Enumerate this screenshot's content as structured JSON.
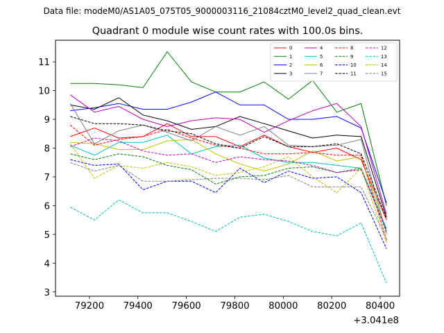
{
  "chart_data": {
    "type": "line",
    "suptitle": "Data file: modeM0/AS1A05_075T05_9000003116_21084cztM0_level2_quad_clean.evt",
    "title": "Quadrant 0 module wise count rates with 100.0s bins.",
    "xlabel": "",
    "ylabel": "",
    "x_offset_label": "+3.041e8",
    "xlim": [
      79060,
      80480
    ],
    "ylim": [
      2.85,
      11.75
    ],
    "x_ticks": [
      79200,
      79400,
      79600,
      79800,
      80000,
      80200,
      80400
    ],
    "x_tick_labels": [
      "79200",
      "79400",
      "79600",
      "79800",
      "80000",
      "80200",
      "80400"
    ],
    "y_ticks": [
      3,
      4,
      5,
      6,
      7,
      8,
      9,
      10,
      11
    ],
    "y_tick_labels": [
      "3",
      "4",
      "5",
      "6",
      "7",
      "8",
      "9",
      "10",
      "11"
    ],
    "legend_position": "top-right",
    "x": [
      79121,
      79221,
      79321,
      79421,
      79521,
      79621,
      79721,
      79821,
      79921,
      80021,
      80121,
      80221,
      80321,
      80426
    ],
    "series": [
      {
        "name": "0",
        "color": "#ff0000",
        "style": "solid",
        "values": [
          8.4,
          8.7,
          8.35,
          8.4,
          8.85,
          8.4,
          8.4,
          8.05,
          8.45,
          8.05,
          7.85,
          8.0,
          7.6,
          5.5
        ]
      },
      {
        "name": "1",
        "color": "#008000",
        "style": "solid",
        "values": [
          10.25,
          10.25,
          10.2,
          10.1,
          11.35,
          10.3,
          9.95,
          9.95,
          10.3,
          9.7,
          10.35,
          9.25,
          9.55,
          6.0
        ]
      },
      {
        "name": "2",
        "color": "#0000ff",
        "style": "solid",
        "values": [
          9.3,
          9.4,
          9.55,
          9.35,
          9.35,
          9.6,
          9.95,
          9.5,
          9.5,
          9.0,
          9.0,
          9.1,
          8.7,
          6.1
        ]
      },
      {
        "name": "3",
        "color": "#000000",
        "style": "solid",
        "values": [
          9.5,
          9.35,
          9.75,
          9.15,
          8.95,
          8.65,
          8.75,
          9.1,
          8.85,
          8.6,
          8.35,
          8.45,
          8.4,
          5.6
        ]
      },
      {
        "name": "4",
        "color": "#c000c0",
        "style": "solid",
        "values": [
          9.85,
          9.25,
          9.45,
          9.0,
          8.75,
          8.95,
          9.05,
          9.0,
          8.55,
          8.95,
          9.3,
          9.55,
          8.75,
          5.7
        ]
      },
      {
        "name": "5",
        "color": "#00bfbf",
        "style": "solid",
        "values": [
          8.1,
          7.75,
          8.2,
          8.2,
          8.45,
          7.8,
          8.05,
          8.1,
          7.65,
          7.5,
          7.5,
          7.4,
          7.3,
          5.2
        ]
      },
      {
        "name": "6",
        "color": "#bfbf00",
        "style": "solid",
        "values": [
          8.2,
          8.15,
          7.95,
          7.95,
          8.25,
          8.3,
          7.8,
          7.45,
          7.2,
          7.45,
          7.9,
          7.55,
          7.7,
          5.1
        ]
      },
      {
        "name": "7",
        "color": "#808080",
        "style": "solid",
        "values": [
          9.55,
          8.15,
          8.6,
          8.8,
          8.55,
          8.25,
          8.75,
          8.45,
          8.75,
          8.1,
          8.05,
          8.1,
          8.3,
          5.0
        ]
      },
      {
        "name": "8",
        "color": "#ff0000",
        "style": "dashed",
        "values": [
          8.8,
          8.1,
          8.3,
          8.4,
          8.65,
          8.35,
          8.1,
          8.0,
          7.8,
          7.8,
          7.85,
          7.75,
          7.75,
          4.8
        ]
      },
      {
        "name": "9",
        "color": "#008000",
        "style": "dashed",
        "values": [
          7.8,
          7.6,
          7.8,
          7.7,
          7.4,
          7.25,
          6.75,
          7.0,
          7.05,
          7.3,
          7.35,
          7.15,
          7.3,
          5.1
        ]
      },
      {
        "name": "10",
        "color": "#0000ff",
        "style": "dashed",
        "values": [
          7.6,
          7.4,
          7.45,
          6.55,
          6.85,
          6.85,
          6.45,
          7.3,
          6.8,
          7.2,
          6.95,
          7.0,
          6.45,
          4.5
        ]
      },
      {
        "name": "11",
        "color": "#000000",
        "style": "dashed",
        "values": [
          9.1,
          8.85,
          8.85,
          8.8,
          8.6,
          8.5,
          8.15,
          8.0,
          8.4,
          8.05,
          8.05,
          8.15,
          7.8,
          5.55
        ]
      },
      {
        "name": "12",
        "color": "#c000c0",
        "style": "dashed",
        "values": [
          8.05,
          8.35,
          8.25,
          7.9,
          7.75,
          7.8,
          7.5,
          7.7,
          7.6,
          7.55,
          7.4,
          7.15,
          7.25,
          5.15
        ]
      },
      {
        "name": "13",
        "color": "#00bfbf",
        "style": "dashed",
        "values": [
          5.95,
          5.5,
          6.2,
          5.75,
          5.75,
          5.45,
          5.1,
          5.6,
          5.7,
          5.45,
          5.1,
          4.95,
          5.4,
          3.3
        ]
      },
      {
        "name": "14",
        "color": "#bfbf00",
        "style": "dashed",
        "values": [
          8.15,
          6.95,
          7.4,
          7.3,
          7.5,
          7.35,
          7.05,
          7.15,
          7.35,
          7.7,
          7.0,
          6.45,
          7.3,
          4.7
        ]
      },
      {
        "name": "15",
        "color": "#808080",
        "style": "dashed",
        "values": [
          7.5,
          7.2,
          7.4,
          6.85,
          6.85,
          6.9,
          6.95,
          6.95,
          6.9,
          7.05,
          6.65,
          6.65,
          6.65,
          4.85
        ]
      }
    ]
  }
}
